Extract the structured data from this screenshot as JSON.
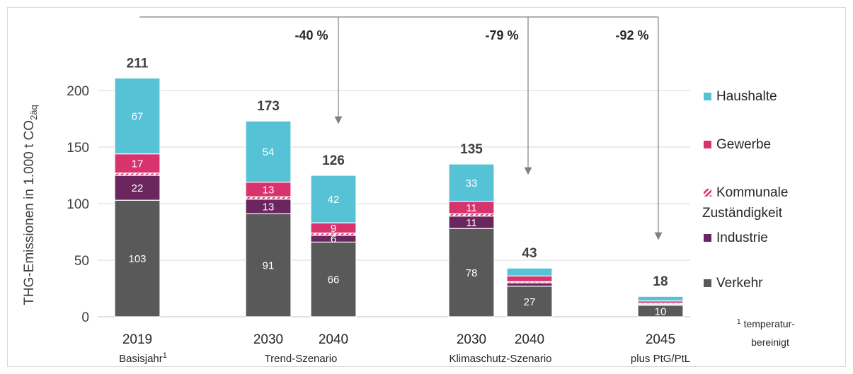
{
  "chart_data": {
    "type": "bar",
    "stacked": true,
    "ylabel": "THG-Emissionen in 1.000 t CO",
    "ylabel_sub": "2äq",
    "ylim": [
      0,
      220
    ],
    "yticks": [
      0,
      50,
      100,
      150,
      200
    ],
    "grid": true,
    "legend_position": "right",
    "bars": [
      {
        "year": "2019",
        "total": "211",
        "values": [
          103,
          22,
          2,
          17,
          67
        ],
        "labels": [
          "103",
          "22",
          "",
          "17",
          "67"
        ]
      },
      {
        "year": "2030",
        "total": "173",
        "values": [
          91,
          13,
          2,
          13,
          54
        ],
        "labels": [
          "91",
          "13",
          "",
          "13",
          "54"
        ]
      },
      {
        "year": "2040",
        "total": "126",
        "values": [
          66,
          6,
          2,
          9,
          42
        ],
        "labels": [
          "66",
          "6",
          "",
          "9",
          "42"
        ]
      },
      {
        "year": "2030",
        "total": "135",
        "values": [
          78,
          11,
          2,
          11,
          33
        ],
        "labels": [
          "78",
          "11",
          "",
          "11",
          "33"
        ]
      },
      {
        "year": "2040",
        "total": "43",
        "values": [
          27,
          3,
          1,
          5,
          7
        ],
        "labels": [
          "27",
          "",
          "",
          "",
          ""
        ]
      },
      {
        "year": "2045",
        "total": "18",
        "values": [
          10,
          1,
          1,
          2,
          4
        ],
        "labels": [
          "10",
          "",
          "",
          "",
          ""
        ]
      }
    ],
    "groups": [
      {
        "label": "Basisjahr",
        "sup": "1"
      },
      {
        "label": "Trend-Szenario",
        "sup": ""
      },
      {
        "label": "Klimaschutz-Szenario",
        "sup": ""
      },
      {
        "label": "plus PtG/PtL",
        "sup": ""
      }
    ],
    "series": [
      {
        "name": "Verkehr",
        "color": "#595959"
      },
      {
        "name": "Industrie",
        "color": "#6b2660"
      },
      {
        "name": "Kommunale Zuständigkeit",
        "name_line1": "Kommunale",
        "name_line2": "Zuständigkeit",
        "color": "#d9336e",
        "pattern": "hatched"
      },
      {
        "name": "Gewerbe",
        "color": "#d9336e"
      },
      {
        "name": "Haushalte",
        "color": "#55c2d6"
      }
    ],
    "annotations": [
      {
        "text": "-40 %",
        "compare": "2040 Trend-Szenario"
      },
      {
        "text": "-79 %",
        "compare": "2040 Klimaschutz-Szenario"
      },
      {
        "text": "-92 %",
        "compare": "2045 plus PtG/PtL"
      }
    ],
    "footnote_line1": "temperatur-",
    "footnote_line2": "bereinigt",
    "footnote_mark": "1"
  }
}
